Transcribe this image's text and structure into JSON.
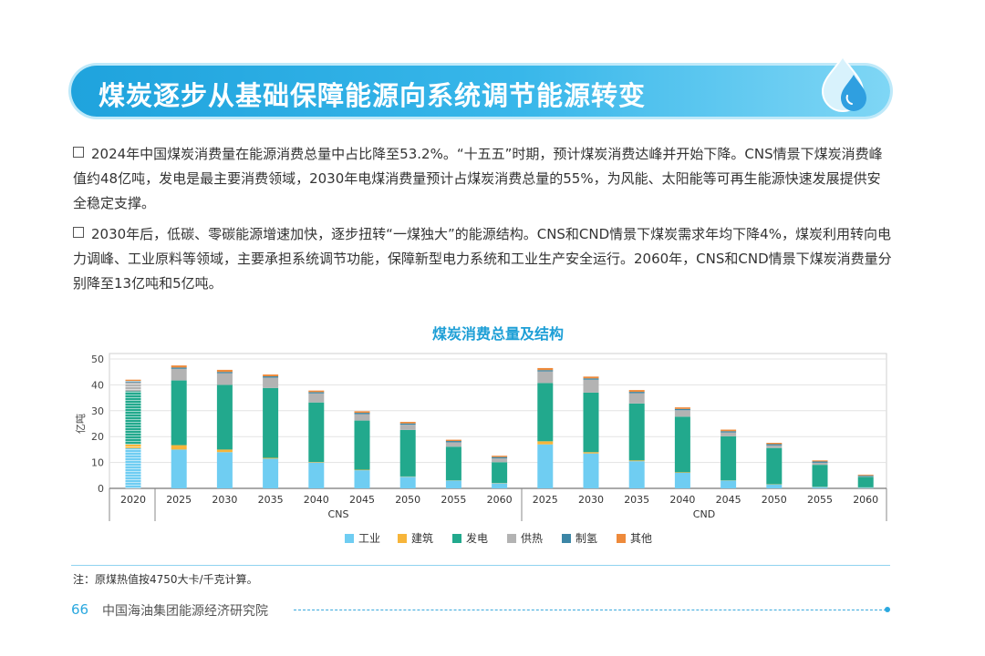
{
  "header": {
    "title": "煤炭逐步从基础保障能源向系统调节能源转变"
  },
  "paragraphs": [
    "2024年中国煤炭消费量在能源消费总量中占比降至53.2%。“十五五”时期，预计煤炭消费达峰并开始下降。CNS情景下煤炭消费峰值约48亿吨，发电是最主要消费领域，2030年电煤消费量预计占煤炭消费总量的55%，为风能、太阳能等可再生能源快速发展提供安全稳定支撑。",
    "2030年后，低碳、零碳能源增速加快，逐步扭转“一煤独大”的能源结构。CNS和CND情景下煤炭需求年均下降4%，煤炭利用转向电力调峰、工业原料等领域，主要承担系统调节功能，保障新型电力系统和工业生产安全运行。2060年，CNS和CND情景下煤炭消费量分别降至13亿吨和5亿吨。"
  ],
  "chart_data": {
    "type": "bar",
    "stacked": true,
    "title": "煤炭消费总量及结构",
    "ylabel": "亿吨",
    "ylim": [
      0,
      50
    ],
    "yticks": [
      0,
      10,
      20,
      30,
      40,
      50
    ],
    "grid": true,
    "legend_position": "bottom",
    "groups": [
      "",
      "CNS",
      "CND"
    ],
    "categories": [
      "2020",
      "2025",
      "2030",
      "2035",
      "2040",
      "2045",
      "2050",
      "2055",
      "2060",
      "2025",
      "2030",
      "2035",
      "2040",
      "2045",
      "2050",
      "2055",
      "2060"
    ],
    "category_group": [
      0,
      1,
      1,
      1,
      1,
      1,
      1,
      1,
      1,
      2,
      2,
      2,
      2,
      2,
      2,
      2,
      2
    ],
    "series": [
      {
        "name": "工业",
        "color": "#6fcdf2",
        "values": [
          15.5,
          15,
          14,
          11.5,
          10,
          7,
          4.5,
          3,
          2,
          17,
          13.5,
          10.5,
          6,
          3,
          1.5,
          0.5,
          0.3
        ]
      },
      {
        "name": "建筑",
        "color": "#f7b53a",
        "values": [
          1.5,
          1.7,
          1,
          0.3,
          0.2,
          0.2,
          0.1,
          0.1,
          0.1,
          1.2,
          0.5,
          0.3,
          0.2,
          0.1,
          0.1,
          0.1,
          0.1
        ]
      },
      {
        "name": "发电",
        "color": "#22a98d",
        "values": [
          20.5,
          25,
          25,
          27,
          23,
          19,
          18,
          13,
          8,
          22.5,
          23,
          22,
          21.5,
          17,
          14,
          8.5,
          4
        ]
      },
      {
        "name": "供热",
        "color": "#b3b3b3",
        "values": [
          3.5,
          4.5,
          4.5,
          4,
          3.5,
          2.5,
          2,
          1.7,
          1.5,
          4.5,
          5,
          4,
          2.5,
          1.5,
          1,
          0.8,
          0.3
        ]
      },
      {
        "name": "制氢",
        "color": "#3c86a6",
        "values": [
          0.5,
          0.5,
          0.5,
          0.5,
          0.5,
          0.5,
          0.5,
          0.5,
          0.5,
          0.5,
          0.5,
          0.5,
          0.5,
          0.5,
          0.5,
          0.5,
          0.3
        ]
      },
      {
        "name": "其他",
        "color": "#ee8a3b",
        "values": [
          0.5,
          0.8,
          0.8,
          0.7,
          0.6,
          0.6,
          0.6,
          0.5,
          0.5,
          0.8,
          0.7,
          0.7,
          0.6,
          0.6,
          0.5,
          0.4,
          0.3
        ]
      }
    ]
  },
  "note": "注：原煤热值按4750大卡/千克计算。",
  "footer": {
    "page_number": "66",
    "org": "中国海油集团能源经济研究院"
  }
}
